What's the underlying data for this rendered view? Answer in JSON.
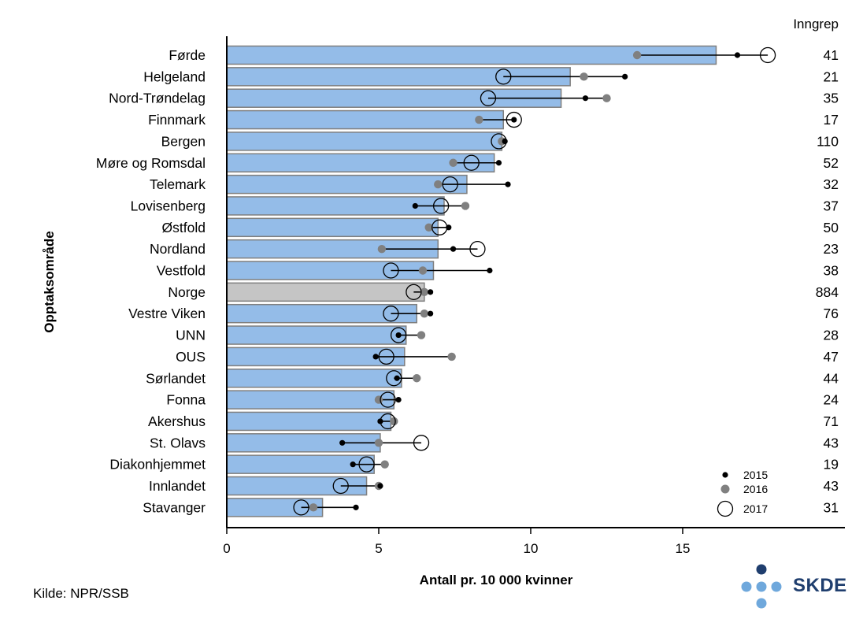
{
  "chart_data": {
    "type": "bar",
    "orientation": "horizontal",
    "ylabel": "Opptaksområde",
    "xlabel": "Antall pr. 10 000 kvinner",
    "right_column_header": "Inngrep",
    "xlim": [
      0,
      20
    ],
    "xticks": [
      0,
      5,
      10,
      15
    ],
    "grid": false,
    "legend_position": "bottom-right",
    "colors": {
      "bar": "#94bce8",
      "bar_highlight": "#c5c5c5",
      "bar_edge": "#7f7f7f",
      "dot_2015": "#000000",
      "dot_2016": "#808080"
    },
    "highlight_category": "Norge",
    "categories": [
      "Førde",
      "Helgeland",
      "Nord-Trøndelag",
      "Finnmark",
      "Bergen",
      "Møre og Romsdal",
      "Telemark",
      "Lovisenberg",
      "Østfold",
      "Nordland",
      "Vestfold",
      "Norge",
      "Vestre Viken",
      "UNN",
      "OUS",
      "Sørlandet",
      "Fonna",
      "Akershus",
      "St. Olavs",
      "Diakonhjemmet",
      "Innlandet",
      "Stavanger"
    ],
    "values": [
      16.1,
      11.3,
      11.0,
      9.1,
      9.05,
      8.8,
      7.9,
      7.15,
      6.95,
      6.95,
      6.8,
      6.5,
      6.25,
      5.9,
      5.85,
      5.75,
      5.5,
      5.4,
      5.05,
      4.85,
      4.6,
      3.15
    ],
    "inngrep": [
      "41",
      "21",
      "35",
      "17",
      "110",
      "52",
      "32",
      "37",
      "50",
      "23",
      "38",
      "884",
      "76",
      "28",
      "47",
      "44",
      "24",
      "71",
      "43",
      "19",
      "43",
      "31"
    ],
    "series": [
      {
        "name": "2015",
        "marker": "small-black-dot",
        "values": [
          16.8,
          13.1,
          11.8,
          9.45,
          9.15,
          8.95,
          9.25,
          6.2,
          7.3,
          7.45,
          8.65,
          6.7,
          6.7,
          5.65,
          4.9,
          5.6,
          5.65,
          5.05,
          3.8,
          4.15,
          5.05,
          4.25
        ]
      },
      {
        "name": "2016",
        "marker": "grey-dot",
        "values": [
          13.5,
          11.75,
          12.5,
          8.3,
          9.05,
          7.45,
          6.95,
          7.85,
          6.65,
          5.1,
          6.45,
          6.5,
          6.5,
          6.4,
          7.4,
          6.25,
          5.0,
          5.5,
          5.0,
          5.2,
          5.0,
          2.85
        ]
      },
      {
        "name": "2017",
        "marker": "open-circle",
        "values": [
          17.8,
          9.1,
          8.6,
          9.45,
          8.95,
          8.05,
          7.35,
          7.05,
          7.0,
          8.25,
          5.4,
          6.15,
          5.4,
          5.65,
          5.25,
          5.5,
          5.3,
          5.3,
          6.4,
          4.6,
          3.75,
          2.45
        ]
      }
    ]
  },
  "source_text": "Kilde: NPR/SSB",
  "logo": {
    "text": "SKDE",
    "dot_dark": "#1f3e6e",
    "dot_light": "#6fa8dc"
  }
}
